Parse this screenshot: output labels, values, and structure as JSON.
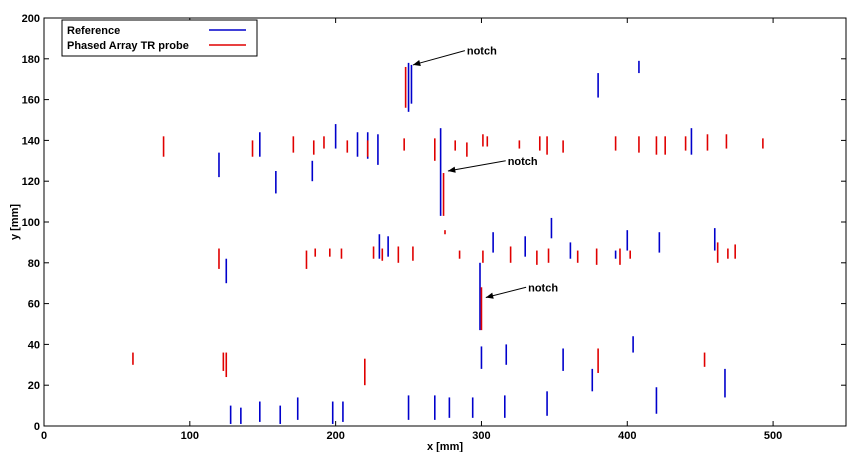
{
  "chart_data": {
    "type": "scatter",
    "xlabel": "x [mm]",
    "ylabel": "y [mm]",
    "xlim": [
      0,
      550
    ],
    "ylim": [
      0,
      200
    ],
    "xticks": [
      0,
      100,
      200,
      300,
      400,
      500
    ],
    "yticks": [
      0,
      20,
      40,
      60,
      80,
      100,
      120,
      140,
      160,
      180,
      200
    ],
    "grid": false,
    "legend_position": "top-left",
    "colors": {
      "reference": "#0000cc",
      "probe": "#e00000"
    },
    "series": [
      {
        "name": "Reference",
        "color": "#0000cc",
        "segments": [
          [
            250,
            154,
            178
          ],
          [
            252,
            158,
            177
          ],
          [
            380,
            161,
            173
          ],
          [
            408,
            173,
            179
          ],
          [
            120,
            122,
            134
          ],
          [
            148,
            132,
            144
          ],
          [
            200,
            136,
            148
          ],
          [
            215,
            132,
            144
          ],
          [
            222,
            131,
            144
          ],
          [
            229,
            128,
            143
          ],
          [
            272,
            103,
            146
          ],
          [
            444,
            133,
            146
          ],
          [
            184,
            120,
            130
          ],
          [
            159,
            114,
            125
          ],
          [
            125,
            70,
            82
          ],
          [
            230,
            82,
            94
          ],
          [
            236,
            83,
            93
          ],
          [
            308,
            85,
            95
          ],
          [
            330,
            83,
            93
          ],
          [
            348,
            92,
            102
          ],
          [
            361,
            82,
            90
          ],
          [
            392,
            82,
            86
          ],
          [
            400,
            86,
            96
          ],
          [
            422,
            85,
            95
          ],
          [
            460,
            86,
            97
          ],
          [
            299,
            47,
            80
          ],
          [
            300,
            28,
            39
          ],
          [
            317,
            30,
            40
          ],
          [
            356,
            27,
            38
          ],
          [
            376,
            17,
            28
          ],
          [
            404,
            36,
            44
          ],
          [
            420,
            6,
            19
          ],
          [
            467,
            14,
            28
          ],
          [
            128,
            1,
            10
          ],
          [
            135,
            1,
            9
          ],
          [
            148,
            2,
            12
          ],
          [
            162,
            1,
            10
          ],
          [
            174,
            3,
            14
          ],
          [
            198,
            1,
            12
          ],
          [
            205,
            2,
            12
          ],
          [
            250,
            3,
            15
          ],
          [
            268,
            3,
            15
          ],
          [
            278,
            4,
            14
          ],
          [
            294,
            4,
            14
          ],
          [
            316,
            4,
            15
          ],
          [
            345,
            5,
            17
          ]
        ]
      },
      {
        "name": "Phased Array TR probe",
        "color": "#e00000",
        "segments": [
          [
            248,
            156,
            176
          ],
          [
            82,
            132,
            142
          ],
          [
            143,
            132,
            140
          ],
          [
            171,
            134,
            142
          ],
          [
            185,
            133,
            140
          ],
          [
            192,
            136,
            142
          ],
          [
            208,
            134,
            140
          ],
          [
            222,
            132,
            140
          ],
          [
            247,
            135,
            141
          ],
          [
            268,
            130,
            141
          ],
          [
            282,
            135,
            140
          ],
          [
            290,
            132,
            139
          ],
          [
            301,
            137,
            143
          ],
          [
            304,
            137,
            142
          ],
          [
            326,
            136,
            140
          ],
          [
            345,
            133,
            142
          ],
          [
            340,
            135,
            142
          ],
          [
            356,
            134,
            140
          ],
          [
            392,
            135,
            142
          ],
          [
            408,
            134,
            142
          ],
          [
            420,
            133,
            142
          ],
          [
            426,
            133,
            142
          ],
          [
            440,
            135,
            142
          ],
          [
            455,
            135,
            143
          ],
          [
            468,
            136,
            143
          ],
          [
            493,
            136,
            141
          ],
          [
            274,
            103,
            124
          ],
          [
            120,
            77,
            87
          ],
          [
            180,
            77,
            86
          ],
          [
            186,
            83,
            87
          ],
          [
            196,
            83,
            87
          ],
          [
            204,
            82,
            87
          ],
          [
            226,
            82,
            88
          ],
          [
            232,
            81,
            87
          ],
          [
            243,
            80,
            88
          ],
          [
            253,
            81,
            88
          ],
          [
            275,
            94,
            96
          ],
          [
            285,
            82,
            86
          ],
          [
            301,
            80,
            86
          ],
          [
            320,
            80,
            88
          ],
          [
            338,
            79,
            86
          ],
          [
            346,
            80,
            87
          ],
          [
            366,
            80,
            86
          ],
          [
            379,
            79,
            87
          ],
          [
            395,
            79,
            87
          ],
          [
            402,
            82,
            86
          ],
          [
            462,
            80,
            90
          ],
          [
            469,
            82,
            87
          ],
          [
            474,
            82,
            89
          ],
          [
            300,
            47,
            68
          ],
          [
            61,
            30,
            36
          ],
          [
            123,
            27,
            36
          ],
          [
            125,
            24,
            36
          ],
          [
            220,
            20,
            33
          ],
          [
            380,
            26,
            38
          ],
          [
            453,
            29,
            36
          ]
        ]
      }
    ],
    "annotations": [
      {
        "text": "notch",
        "text_x": 290,
        "text_y": 184,
        "arrow_x": 253,
        "arrow_y": 177
      },
      {
        "text": "notch",
        "text_x": 318,
        "text_y": 130,
        "arrow_x": 277,
        "arrow_y": 125
      },
      {
        "text": "notch",
        "text_x": 332,
        "text_y": 68,
        "arrow_x": 303,
        "arrow_y": 63
      }
    ]
  }
}
